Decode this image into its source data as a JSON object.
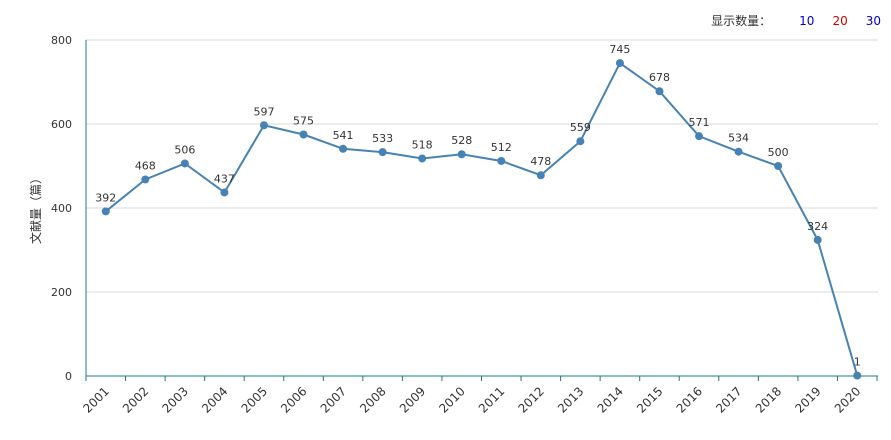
{
  "count_selector": {
    "label": "显示数量：",
    "options": [
      "10",
      "20",
      "30"
    ]
  },
  "chart_data": {
    "type": "line",
    "title": "",
    "xlabel": "",
    "ylabel": "文献量（篇）",
    "ylim": [
      0,
      800
    ],
    "yticks": [
      0,
      200,
      400,
      600,
      800
    ],
    "grid": true,
    "categories": [
      "2001",
      "2002",
      "2003",
      "2004",
      "2005",
      "2006",
      "2007",
      "2008",
      "2009",
      "2010",
      "2011",
      "2012",
      "2013",
      "2014",
      "2015",
      "2016",
      "2017",
      "2018",
      "2019",
      "2020"
    ],
    "series": [
      {
        "name": "文献量",
        "values": [
          392,
          468,
          506,
          437,
          597,
          575,
          541,
          533,
          518,
          528,
          512,
          478,
          559,
          745,
          678,
          571,
          534,
          500,
          324,
          1
        ],
        "color": "#4682b4"
      }
    ]
  }
}
